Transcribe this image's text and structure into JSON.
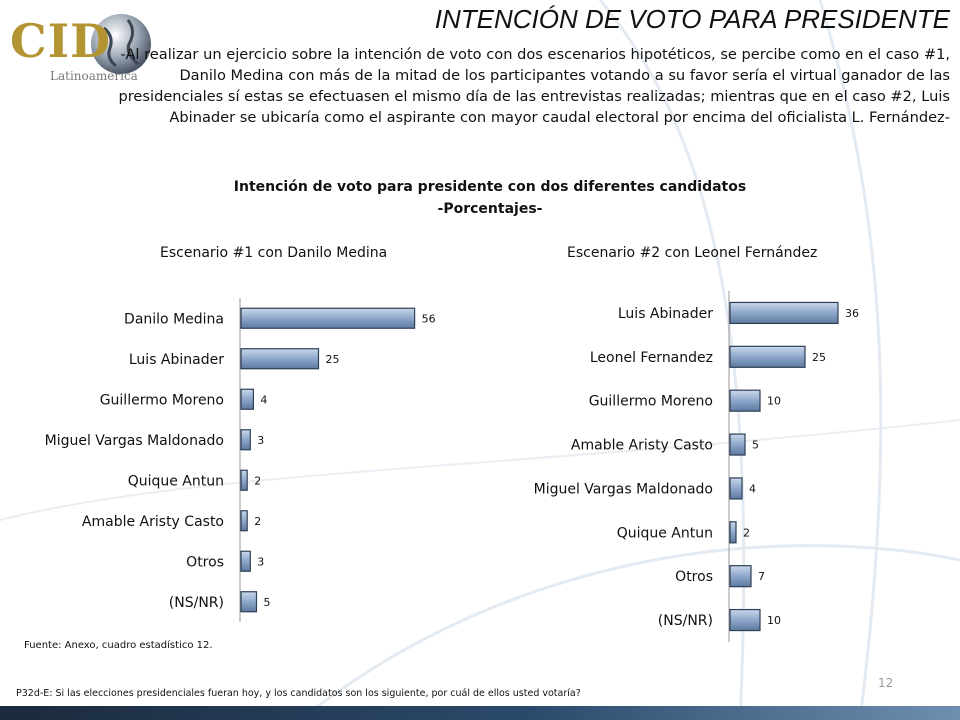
{
  "logo": {
    "text": "CID",
    "sub": "Latinoamérica"
  },
  "title": "INTENCIÓN DE VOTO PARA PRESIDENTE",
  "summary": "-Al realizar un ejercicio sobre la intención de voto con dos escenarios hipotéticos, se percibe como en el caso #1, Danilo Medina con más de la mitad de los participantes votando a su favor sería el virtual ganador de las presidenciales sí estas se efectuasen el mismo día de las entrevistas realizadas; mientras que en el caso #2, Luis Abinader se ubicaría como el aspirante con mayor caudal electoral por encima del oficialista L. Fernández-",
  "chart_heading": {
    "line1": "Intención de voto para presidente con dos diferentes candidatos",
    "line2": "-Porcentajes-"
  },
  "chart_data": [
    {
      "type": "bar",
      "orientation": "horizontal",
      "title": "Escenario #1 con Danilo Medina",
      "categories": [
        "Danilo Medina",
        "Luis Abinader",
        "Guillermo Moreno",
        "Miguel Vargas Maldonado",
        "Quique Antun",
        "Amable Aristy Casto",
        "Otros",
        "(NS/NR)"
      ],
      "values": [
        56,
        25,
        4,
        3,
        2,
        2,
        3,
        5
      ],
      "xlim": [
        0,
        60
      ],
      "grid": false,
      "bar_color": "#8ea7c9"
    },
    {
      "type": "bar",
      "orientation": "horizontal",
      "title": "Escenario #2 con Leonel Fernández",
      "categories": [
        "Luis Abinader",
        "Leonel Fernandez",
        "Guillermo Moreno",
        "Amable Aristy Casto",
        "Miguel Vargas Maldonado",
        "Quique Antun",
        "Otros",
        "(NS/NR)"
      ],
      "values": [
        36,
        25,
        10,
        5,
        4,
        2,
        7,
        10
      ],
      "xlim": [
        0,
        40
      ],
      "grid": false,
      "bar_color": "#8ea7c9"
    }
  ],
  "source": "Fuente: Anexo, cuadro estadístico 12.",
  "question": "P32d-E: Si las elecciones presidenciales fueran hoy, y los candidatos son los siguiente, por cuál de ellos usted votaría?",
  "page_number": "12",
  "colors": {
    "accent_gold": "#b39432",
    "bar_fill": "#8ea7c9",
    "footer": "#1b2a3d"
  }
}
